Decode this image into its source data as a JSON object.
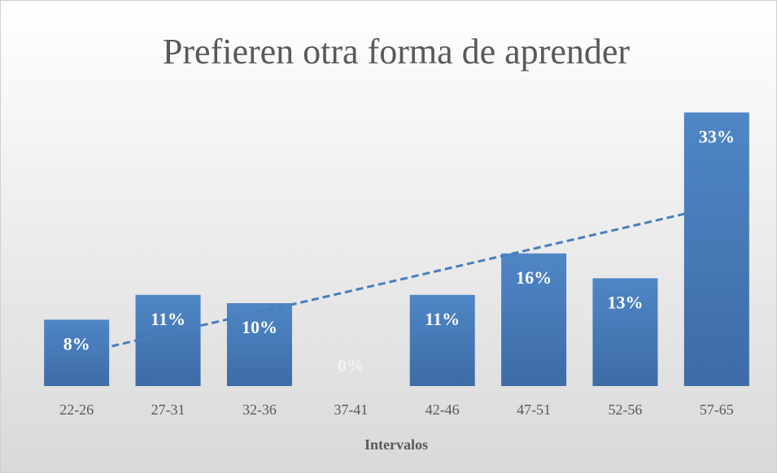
{
  "chart_data": {
    "type": "bar",
    "title": "Prefieren otra forma de aprender",
    "categories": [
      "22-26",
      "27-31",
      "32-36",
      "37-41",
      "42-46",
      "47-51",
      "52-56",
      "57-65"
    ],
    "values": [
      8,
      11,
      10,
      0,
      11,
      16,
      13,
      33
    ],
    "value_labels": [
      "8%",
      "11%",
      "10%",
      "0%",
      "11%",
      "16%",
      "13%",
      "33%"
    ],
    "x_label": "Intervalos",
    "color": "#4a7dba",
    "trendline": {
      "type": "linear",
      "color": "#4a7ebb",
      "style": "dashed"
    }
  }
}
